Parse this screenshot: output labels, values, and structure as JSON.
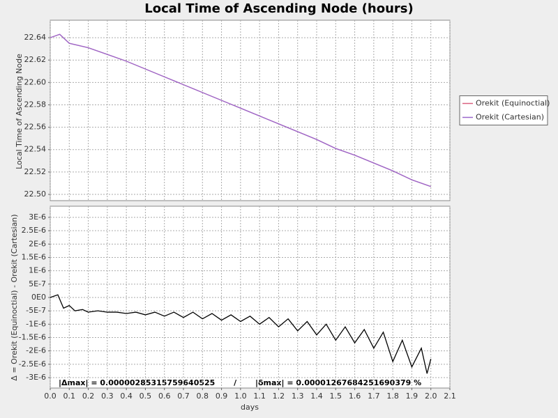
{
  "chart_data": [
    {
      "type": "line",
      "title": "Local Time of Ascending Node (hours)",
      "ylabel": "Local Time of Ascending Node",
      "x": [
        0,
        0.05,
        0.1,
        0.2,
        0.3,
        0.4,
        0.5,
        0.6,
        0.7,
        0.8,
        0.9,
        1.0,
        1.1,
        1.2,
        1.3,
        1.4,
        1.5,
        1.6,
        1.7,
        1.8,
        1.9,
        2.0
      ],
      "series": [
        {
          "name": "Orekit (Equinoctial)",
          "color": "#d9607f",
          "values": [
            22.64,
            22.643,
            22.635,
            22.631,
            22.625,
            22.619,
            22.612,
            22.605,
            22.598,
            22.591,
            22.584,
            22.577,
            22.57,
            22.563,
            22.556,
            22.549,
            22.541,
            22.535,
            22.528,
            22.521,
            22.513,
            22.507
          ]
        },
        {
          "name": "Orekit (Cartesian)",
          "color": "#9966cc",
          "values": [
            22.64,
            22.643,
            22.635,
            22.631,
            22.625,
            22.619,
            22.612,
            22.605,
            22.598,
            22.591,
            22.584,
            22.577,
            22.57,
            22.563,
            22.556,
            22.549,
            22.541,
            22.535,
            22.528,
            22.521,
            22.513,
            22.507
          ]
        }
      ],
      "xlim": [
        0,
        2.1
      ],
      "ylim": [
        22.4944,
        22.6556
      ],
      "yticks": [
        {
          "value": 22.5,
          "label": "22.50"
        },
        22.52,
        22.54,
        22.56,
        22.58,
        {
          "value": 22.6,
          "label": "22.60"
        },
        22.62,
        22.64
      ],
      "grid": true,
      "legend": "right"
    },
    {
      "type": "line",
      "ylabel": "Δ = Orekit (Equinoctial) - Orekit (Cartesian)",
      "xlabel": "days",
      "annotation": "|Δmax| = 0.00000285315759640525       /       |δmax| = 0.00001267684251690379 %",
      "x": [
        0,
        0.04,
        0.07,
        0.1,
        0.13,
        0.17,
        0.2,
        0.25,
        0.3,
        0.35,
        0.4,
        0.45,
        0.5,
        0.55,
        0.6,
        0.65,
        0.7,
        0.75,
        0.8,
        0.85,
        0.9,
        0.95,
        1.0,
        1.05,
        1.1,
        1.15,
        1.2,
        1.25,
        1.3,
        1.35,
        1.4,
        1.45,
        1.5,
        1.55,
        1.6,
        1.65,
        1.7,
        1.75,
        1.8,
        1.85,
        1.9,
        1.95,
        1.98,
        2.0
      ],
      "series": [
        {
          "color": "#000000",
          "values": [
            0,
            1e-07,
            -4e-07,
            -3e-07,
            -5e-07,
            -4.5e-07,
            -5.5e-07,
            -5e-07,
            -5.5e-07,
            -5.5e-07,
            -6e-07,
            -5.5e-07,
            -6.5e-07,
            -5.5e-07,
            -7e-07,
            -5.5e-07,
            -7.5e-07,
            -5.5e-07,
            -8e-07,
            -6e-07,
            -8.5e-07,
            -6.5e-07,
            -9e-07,
            -7e-07,
            -1e-06,
            -7.5e-07,
            -1.1e-06,
            -8e-07,
            -1.25e-06,
            -9e-07,
            -1.4e-06,
            -1e-06,
            -1.6e-06,
            -1.1e-06,
            -1.7e-06,
            -1.2e-06,
            -1.9e-06,
            -1.3e-06,
            -2.4e-06,
            -1.6e-06,
            -2.6e-06,
            -1.9e-06,
            -2.85e-06,
            -2.3e-06
          ]
        }
      ],
      "xlim": [
        0,
        2.1
      ],
      "ylim": [
        -3.391e-06,
        3.417e-06
      ],
      "xticks": [
        {
          "value": 0,
          "label": "0.0"
        },
        0.1,
        0.2,
        0.3,
        0.4,
        0.5,
        0.6,
        0.7,
        0.8,
        0.9,
        {
          "value": 1,
          "label": "1.0"
        },
        1.1,
        1.2,
        1.3,
        1.4,
        1.5,
        1.6,
        1.7,
        1.8,
        1.9,
        {
          "value": 2,
          "label": "2.0"
        },
        2.1
      ],
      "yticks": [
        {
          "value": -3e-06,
          "label": "-3E-6"
        },
        {
          "value": -2.5e-06,
          "label": "-2.5E-6"
        },
        {
          "value": -2e-06,
          "label": "-2E-6"
        },
        {
          "value": -1.5e-06,
          "label": "-1.5E-6"
        },
        {
          "value": -1e-06,
          "label": "-1E-6"
        },
        {
          "value": -5e-07,
          "label": "-5E-7"
        },
        {
          "value": 0,
          "label": "0E0"
        },
        {
          "value": 5e-07,
          "label": "5E-7"
        },
        {
          "value": 1e-06,
          "label": "1E-6"
        },
        {
          "value": 1.5e-06,
          "label": "1.5E-6"
        },
        {
          "value": 2e-06,
          "label": "2E-6"
        },
        {
          "value": 2.5e-06,
          "label": "2.5E-6"
        },
        {
          "value": 3e-06,
          "label": "3E-6"
        }
      ],
      "grid": true
    }
  ]
}
